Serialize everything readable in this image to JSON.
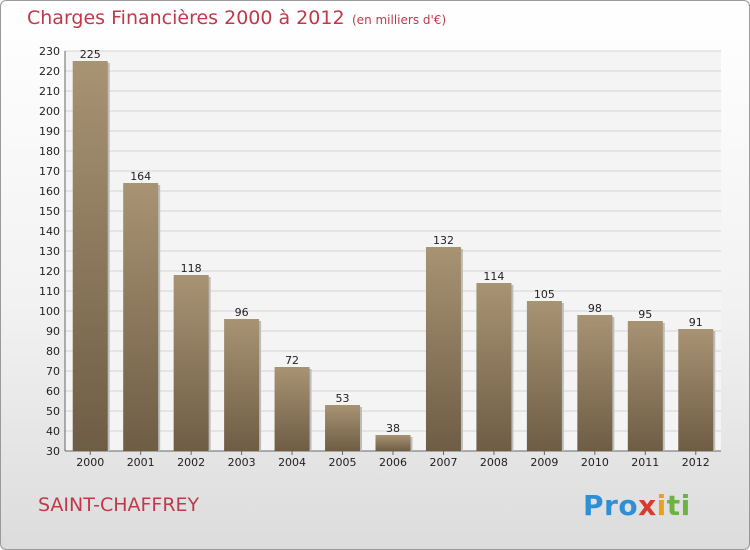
{
  "header": {
    "title": "Charges Financières 2000 à 2012",
    "subtitle": "(en milliers d'€)"
  },
  "footer": {
    "commune": "SAINT-CHAFFREY",
    "logo_parts": [
      "Pro",
      "x",
      "i",
      "ti"
    ]
  },
  "colors": {
    "title": "#c0394b",
    "bar_top": "#a89373",
    "bar_bottom": "#6e5d45",
    "grid": "#d5d5d5"
  },
  "chart_data": {
    "type": "bar",
    "title": "Charges Financières 2000 à 2012",
    "subtitle": "(en milliers d'€)",
    "categories": [
      "2000",
      "2001",
      "2002",
      "2003",
      "2004",
      "2005",
      "2006",
      "2007",
      "2008",
      "2009",
      "2010",
      "2011",
      "2012"
    ],
    "values": [
      225,
      164,
      118,
      96,
      72,
      53,
      38,
      132,
      114,
      105,
      98,
      95,
      91
    ],
    "ylim": [
      30,
      230
    ],
    "ytick_step": 10,
    "grid": true,
    "legend": "none"
  }
}
